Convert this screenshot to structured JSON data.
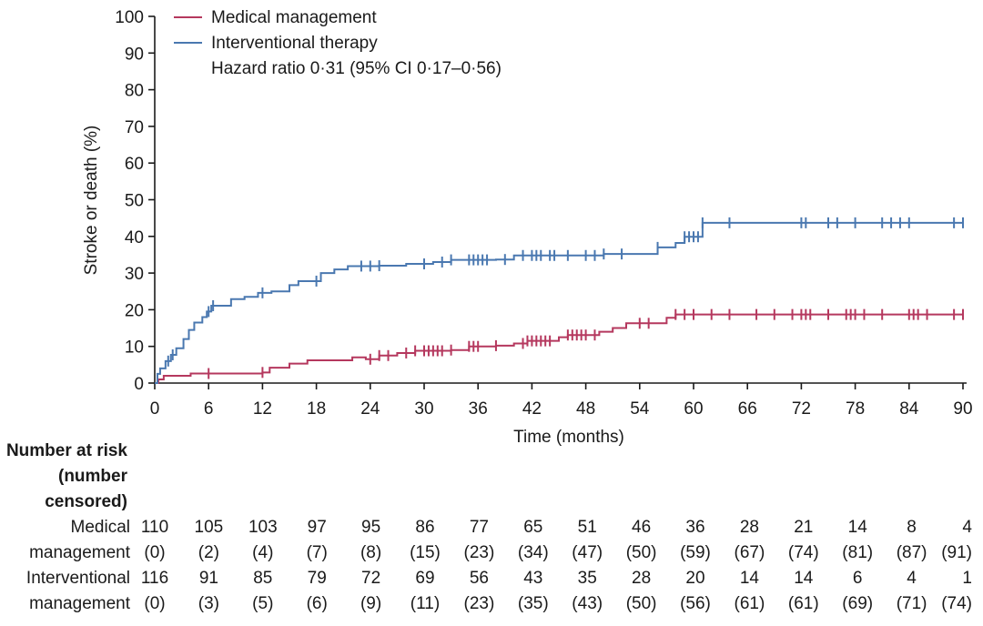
{
  "chart_data": {
    "type": "line",
    "chart_kind": "kaplan-meier step curve",
    "xlabel": "Time (months)",
    "ylabel": "Stroke or death (%)",
    "xlim": [
      0,
      90
    ],
    "ylim": [
      0,
      100
    ],
    "x_ticks": [
      0,
      6,
      12,
      18,
      24,
      30,
      36,
      42,
      48,
      54,
      60,
      66,
      72,
      78,
      84,
      90
    ],
    "y_ticks": [
      0,
      10,
      20,
      30,
      40,
      50,
      60,
      70,
      80,
      90,
      100
    ],
    "grid": false,
    "legend_position": "top-left",
    "annotation": "Hazard ratio 0·31 (95% CI 0·17–0·56)",
    "series": [
      {
        "name": "Medical management",
        "color": "#b5385e",
        "steps": [
          [
            0,
            0
          ],
          [
            0.4,
            1
          ],
          [
            1,
            2
          ],
          [
            4,
            2.6
          ],
          [
            12,
            2.9
          ],
          [
            12.8,
            4.2
          ],
          [
            15,
            5.3
          ],
          [
            17,
            6.2
          ],
          [
            22,
            7
          ],
          [
            23.5,
            6.5
          ],
          [
            25,
            7.5
          ],
          [
            27,
            8.2
          ],
          [
            29,
            8.8
          ],
          [
            33,
            9
          ],
          [
            35,
            10
          ],
          [
            38,
            10.2
          ],
          [
            40,
            10.8
          ],
          [
            41.5,
            11.5
          ],
          [
            45,
            12.5
          ],
          [
            46,
            13.1
          ],
          [
            49.5,
            14
          ],
          [
            51,
            15
          ],
          [
            52.5,
            16.3
          ],
          [
            57,
            17.8
          ],
          [
            58,
            18.7
          ],
          [
            90,
            18.7
          ]
        ],
        "censored": [
          6,
          12,
          24,
          25,
          26,
          28,
          29,
          30,
          30.5,
          31,
          31.5,
          32,
          33,
          35,
          35.5,
          36,
          38,
          41,
          41.5,
          42,
          42.5,
          43,
          43.5,
          44,
          46,
          46.5,
          47,
          47.5,
          48,
          49,
          54,
          55,
          58,
          59,
          60,
          62,
          64,
          67,
          69,
          71,
          72,
          72.5,
          73,
          75,
          77,
          77.5,
          78,
          79,
          81,
          84,
          84.5,
          85,
          86,
          89,
          90
        ]
      },
      {
        "name": "Interventional therapy",
        "color": "#4a78b0",
        "steps": [
          [
            0,
            0
          ],
          [
            0.3,
            2.5
          ],
          [
            0.6,
            4
          ],
          [
            1.2,
            6
          ],
          [
            1.8,
            7.7
          ],
          [
            2.4,
            9.5
          ],
          [
            3.2,
            12
          ],
          [
            3.8,
            14.5
          ],
          [
            4.4,
            16.5
          ],
          [
            5.3,
            18
          ],
          [
            5.8,
            19.5
          ],
          [
            6.3,
            21.1
          ],
          [
            8.5,
            22.9
          ],
          [
            10,
            23.5
          ],
          [
            11.5,
            24.6
          ],
          [
            13,
            25
          ],
          [
            15,
            26.7
          ],
          [
            16,
            27.8
          ],
          [
            18.5,
            30
          ],
          [
            20,
            31
          ],
          [
            21.5,
            31.9
          ],
          [
            25,
            32
          ],
          [
            28,
            32.5
          ],
          [
            31,
            33
          ],
          [
            33,
            33.6
          ],
          [
            38,
            33.7
          ],
          [
            40,
            34.8
          ],
          [
            50,
            35.2
          ],
          [
            56,
            37
          ],
          [
            58,
            38.2
          ],
          [
            59,
            39.9
          ],
          [
            61,
            43.7
          ],
          [
            90,
            43.7
          ]
        ],
        "censored": [
          1.5,
          2,
          6,
          6.5,
          12,
          18,
          23,
          24,
          25,
          30,
          32,
          33,
          35,
          35.5,
          36,
          36.5,
          37,
          39,
          41,
          42,
          42.5,
          43,
          44,
          44.5,
          46,
          48,
          49,
          50,
          52,
          56,
          59,
          59.5,
          60,
          60.5,
          61,
          64,
          72,
          72.5,
          75,
          76,
          78,
          81,
          82,
          83,
          84,
          89,
          90
        ]
      }
    ],
    "risk_table": {
      "title_lines": [
        "Number at risk",
        "(number",
        "censored)"
      ],
      "rows": [
        {
          "label": "Medical",
          "values": [
            "110",
            "105",
            "103",
            "97",
            "95",
            "86",
            "77",
            "65",
            "51",
            "46",
            "36",
            "28",
            "21",
            "14",
            "8",
            "4"
          ]
        },
        {
          "label": "management",
          "values": [
            "(0)",
            "(2)",
            "(4)",
            "(7)",
            "(8)",
            "(15)",
            "(23)",
            "(34)",
            "(47)",
            "(50)",
            "(59)",
            "(67)",
            "(74)",
            "(81)",
            "(87)",
            "(91)"
          ]
        },
        {
          "label": "Interventional",
          "values": [
            "116",
            "91",
            "85",
            "79",
            "72",
            "69",
            "56",
            "43",
            "35",
            "28",
            "20",
            "14",
            "14",
            "6",
            "4",
            "1"
          ]
        },
        {
          "label": "management",
          "values": [
            "(0)",
            "(3)",
            "(5)",
            "(6)",
            "(9)",
            "(11)",
            "(23)",
            "(35)",
            "(43)",
            "(50)",
            "(56)",
            "(61)",
            "(61)",
            "(69)",
            "(71)",
            "(74)"
          ]
        }
      ]
    }
  }
}
